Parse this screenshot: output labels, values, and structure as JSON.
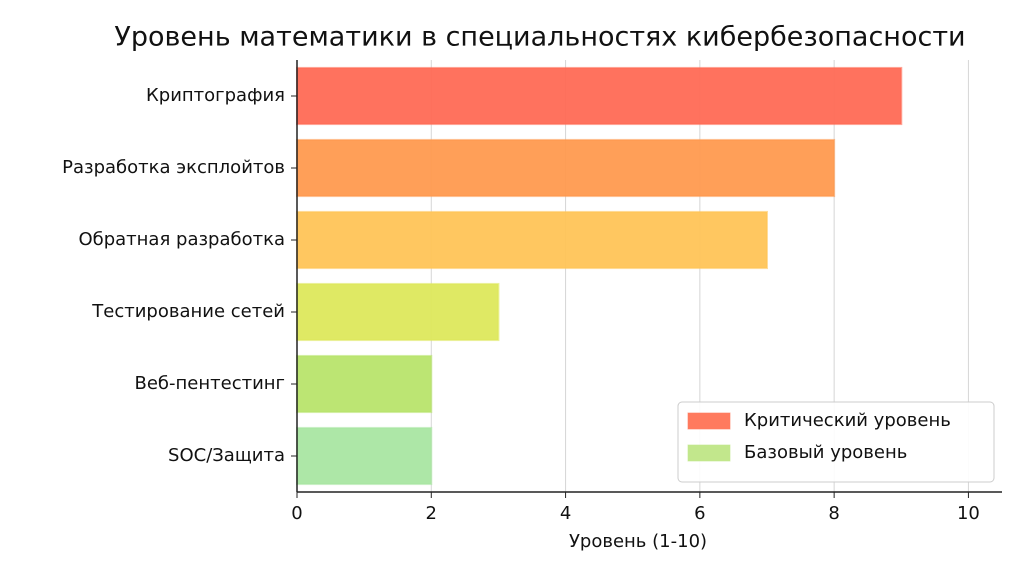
{
  "chart_data": {
    "type": "barh",
    "title": "Уровень математики в специальностях кибербезопасности",
    "xlabel": "Уровень (1-10)",
    "categories": [
      "Криптография",
      "Разработка эксплойтов",
      "Обратная разработка",
      "Тестирование сетей",
      "Веб-пентестинг",
      "SOC/Защита"
    ],
    "values": [
      9,
      8,
      7,
      3,
      2,
      2
    ],
    "colors": [
      "#ff6a55",
      "#ff9a4f",
      "#ffc457",
      "#dde85c",
      "#b8e46c",
      "#a9e6a2"
    ],
    "xlim": [
      0,
      10.5
    ],
    "xticks": [
      0,
      2,
      4,
      6,
      8,
      10
    ],
    "grid": true,
    "legend_position": "lower right",
    "legend": [
      {
        "label": "Критический уровень",
        "color": "#ff7a5e"
      },
      {
        "label": "Базовый уровень",
        "color": "#c2e78c"
      }
    ]
  }
}
